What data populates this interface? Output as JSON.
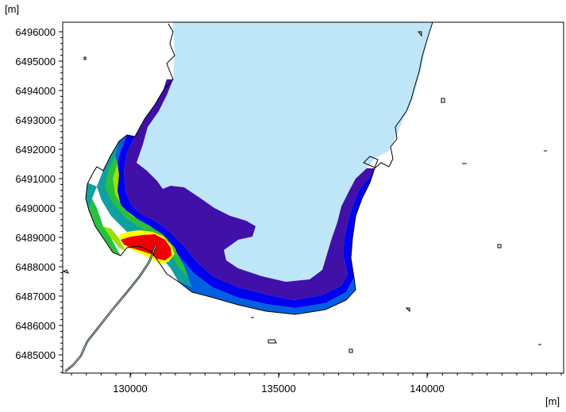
{
  "map": {
    "y_unit_label": "[m]",
    "x_unit_label": "[m]",
    "y_ticks": [
      "6496000",
      "6495000",
      "6494000",
      "6493000",
      "6492000",
      "6491000",
      "6490000",
      "6489000",
      "6488000",
      "6487000",
      "6486000",
      "6485000"
    ],
    "x_ticks": [
      "130000",
      "135000",
      "140000"
    ],
    "colors": {
      "water": "#bfe6f8",
      "land": "#ffffff",
      "coast": "#000000",
      "band_violet": "#4010a8",
      "band_blue": "#0000f0",
      "band_medium_blue": "#0060e0",
      "band_teal": "#10a0a0",
      "band_green": "#28c040",
      "band_lime": "#a0e000",
      "band_yellow": "#ffff00",
      "band_red": "#f00000"
    }
  }
}
